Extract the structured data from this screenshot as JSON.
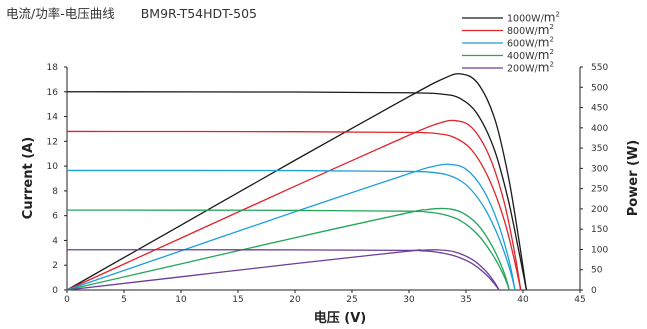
{
  "chart_data": {
    "type": "line",
    "title": "电流/功率-电压曲线",
    "subtitle": "BM9R-T54HDT-505",
    "xlabel": "电压 (V)",
    "ylabel": "Current (A)",
    "y2label": "Power (W)",
    "xlim": [
      0,
      45
    ],
    "ylim": [
      0,
      18
    ],
    "y2lim": [
      0,
      550
    ],
    "x_ticks": [
      0,
      5,
      10,
      15,
      20,
      25,
      30,
      35,
      40,
      45
    ],
    "y_ticks": [
      0,
      2,
      4,
      6,
      8,
      10,
      12,
      14,
      16,
      18
    ],
    "y2_ticks": [
      0,
      50,
      100,
      150,
      200,
      250,
      300,
      350,
      400,
      450,
      500,
      550
    ],
    "grid": false,
    "legend_position": "top-right",
    "legend_unit": "W/m",
    "legend_unit_sup": "2",
    "series": [
      {
        "name": "1000",
        "color": "#1a1a1a",
        "iv": [
          [
            0,
            16.0
          ],
          [
            20,
            15.98
          ],
          [
            30,
            15.92
          ],
          [
            33,
            15.8
          ],
          [
            34.5,
            15.45
          ],
          [
            36,
            14.2
          ],
          [
            37.5,
            11.3
          ],
          [
            38.7,
            7.3
          ],
          [
            39.6,
            3.3
          ],
          [
            40.3,
            0
          ]
        ],
        "pv": [
          [
            0,
            0
          ],
          [
            10,
            160
          ],
          [
            20,
            320
          ],
          [
            30,
            477
          ],
          [
            33,
            521
          ],
          [
            34.5,
            533
          ],
          [
            36,
            511
          ],
          [
            37.5,
            424
          ],
          [
            38.7,
            282
          ],
          [
            39.6,
            131
          ],
          [
            40.3,
            0
          ]
        ]
      },
      {
        "name": "800",
        "color": "#e0242a",
        "iv": [
          [
            0,
            12.8
          ],
          [
            20,
            12.78
          ],
          [
            30,
            12.72
          ],
          [
            32.5,
            12.62
          ],
          [
            34,
            12.3
          ],
          [
            35.5,
            11.3
          ],
          [
            37,
            9.0
          ],
          [
            38.3,
            5.8
          ],
          [
            39.2,
            2.6
          ],
          [
            39.8,
            0
          ]
        ],
        "pv": [
          [
            0,
            0
          ],
          [
            10,
            128
          ],
          [
            20,
            256
          ],
          [
            30,
            382
          ],
          [
            32.5,
            410
          ],
          [
            34,
            418
          ],
          [
            35.5,
            401
          ],
          [
            37,
            333
          ],
          [
            38.3,
            222
          ],
          [
            39.2,
            102
          ],
          [
            39.8,
            0
          ]
        ]
      },
      {
        "name": "600",
        "color": "#1d9fdc",
        "iv": [
          [
            0,
            9.65
          ],
          [
            20,
            9.64
          ],
          [
            30,
            9.57
          ],
          [
            32,
            9.5
          ],
          [
            33.5,
            9.25
          ],
          [
            35,
            8.5
          ],
          [
            36.5,
            6.8
          ],
          [
            37.8,
            4.4
          ],
          [
            38.8,
            1.8
          ],
          [
            39.3,
            0
          ]
        ],
        "pv": [
          [
            0,
            0
          ],
          [
            10,
            96.5
          ],
          [
            20,
            193
          ],
          [
            30,
            287
          ],
          [
            32,
            304
          ],
          [
            33.5,
            310
          ],
          [
            35,
            298
          ],
          [
            36.5,
            248
          ],
          [
            37.8,
            166
          ],
          [
            38.8,
            70
          ],
          [
            39.3,
            0
          ]
        ]
      },
      {
        "name": "400",
        "color": "#22a558",
        "iv": [
          [
            0,
            6.45
          ],
          [
            20,
            6.43
          ],
          [
            30,
            6.36
          ],
          [
            31.5,
            6.3
          ],
          [
            33,
            6.1
          ],
          [
            34.5,
            5.6
          ],
          [
            36,
            4.5
          ],
          [
            37.3,
            2.9
          ],
          [
            38.3,
            1.2
          ],
          [
            38.8,
            0
          ]
        ],
        "pv": [
          [
            0,
            0
          ],
          [
            10,
            64.5
          ],
          [
            20,
            129
          ],
          [
            30,
            191
          ],
          [
            31.5,
            198
          ],
          [
            33,
            201
          ],
          [
            34.5,
            193
          ],
          [
            36,
            162
          ],
          [
            37.3,
            108
          ],
          [
            38.3,
            46
          ],
          [
            38.8,
            0
          ]
        ]
      },
      {
        "name": "200",
        "color": "#6a3d9a",
        "iv": [
          [
            0,
            3.25
          ],
          [
            20,
            3.24
          ],
          [
            30,
            3.2
          ],
          [
            31,
            3.17
          ],
          [
            32.5,
            3.05
          ],
          [
            34,
            2.75
          ],
          [
            35.5,
            2.15
          ],
          [
            36.7,
            1.3
          ],
          [
            37.5,
            0.5
          ],
          [
            37.9,
            0
          ]
        ],
        "pv": [
          [
            0,
            0
          ],
          [
            10,
            32.5
          ],
          [
            20,
            65
          ],
          [
            30,
            96
          ],
          [
            31,
            98
          ],
          [
            32.5,
            99
          ],
          [
            34,
            94
          ],
          [
            35.5,
            76
          ],
          [
            36.7,
            48
          ],
          [
            37.5,
            19
          ],
          [
            37.9,
            0
          ]
        ]
      }
    ]
  }
}
